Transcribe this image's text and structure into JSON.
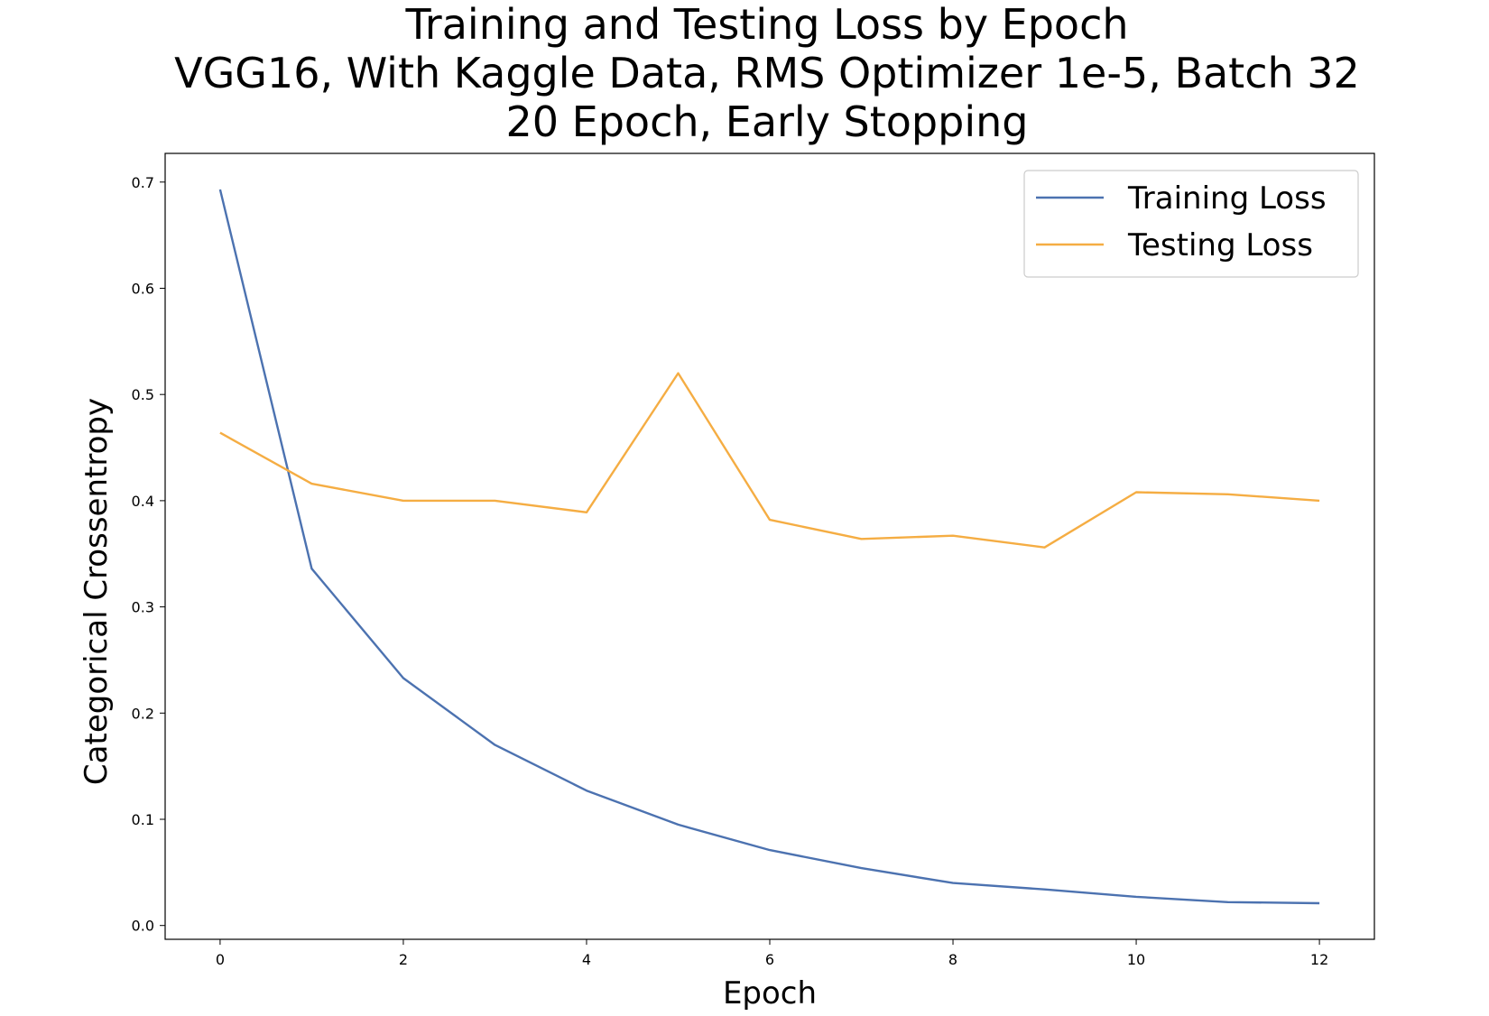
{
  "chart_data": {
    "type": "line",
    "title": "Training and Testing Loss by Epoch",
    "subtitle_lines": [
      "VGG16, With Kaggle Data, RMS Optimizer 1e-5, Batch 32",
      "20 Epoch, Early Stopping"
    ],
    "xlabel": "Epoch",
    "ylabel": "Categorical Crossentropy",
    "x": [
      0,
      1,
      2,
      3,
      4,
      5,
      6,
      7,
      8,
      9,
      10,
      11,
      12
    ],
    "xlim": [
      -0.6,
      12.6
    ],
    "ylim": [
      -0.013,
      0.727
    ],
    "xticks": [
      0,
      2,
      4,
      6,
      8,
      10,
      12
    ],
    "xtick_labels": [
      "0",
      "2",
      "4",
      "6",
      "8",
      "10",
      "12"
    ],
    "yticks": [
      0.0,
      0.1,
      0.2,
      0.3,
      0.4,
      0.5,
      0.6,
      0.7
    ],
    "ytick_labels": [
      "0.0",
      "0.1",
      "0.2",
      "0.3",
      "0.4",
      "0.5",
      "0.6",
      "0.7"
    ],
    "grid": false,
    "legend_position": "top-right",
    "series": [
      {
        "name": "Training Loss",
        "color": "#4c72b0",
        "values": [
          0.693,
          0.336,
          0.233,
          0.17,
          0.127,
          0.095,
          0.071,
          0.054,
          0.04,
          0.034,
          0.027,
          0.022,
          0.021
        ]
      },
      {
        "name": "Testing Loss",
        "color": "#f5ad43",
        "values": [
          0.464,
          0.416,
          0.4,
          0.4,
          0.389,
          0.52,
          0.382,
          0.364,
          0.367,
          0.356,
          0.408,
          0.406,
          0.4
        ]
      }
    ]
  }
}
